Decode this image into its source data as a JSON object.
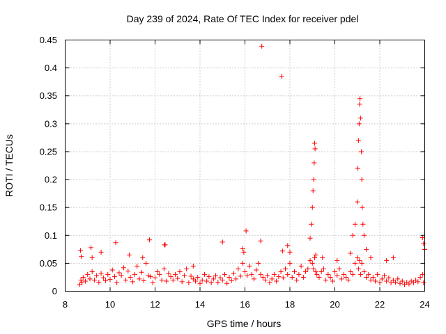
{
  "chart_data": {
    "type": "scatter",
    "title": "Day 239 of 2024, Rate Of TEC Index for receiver pdel",
    "xlabel": "GPS time / hours",
    "ylabel": "ROTI / TECUs",
    "xlim": [
      8,
      24
    ],
    "ylim": [
      0,
      0.45
    ],
    "xticks": [
      8,
      10,
      12,
      14,
      16,
      18,
      20,
      22,
      24
    ],
    "xtick_labels": [
      "8",
      "10",
      "12",
      "14",
      "16",
      "18",
      "20",
      "22",
      "24"
    ],
    "yticks": [
      0,
      0.05,
      0.1,
      0.15,
      0.2,
      0.25,
      0.3,
      0.35,
      0.4,
      0.45
    ],
    "ytick_labels": [
      "0",
      "0.05",
      "0.1",
      "0.15",
      "0.2",
      "0.25",
      "0.3",
      "0.35",
      "0.4",
      "0.45"
    ],
    "grid": true,
    "marker": "+",
    "series": [
      {
        "name": "ROTI",
        "color": "#ff0000",
        "x": [
          8.65,
          8.7,
          8.75,
          8.8,
          8.9,
          9.0,
          9.1,
          9.2,
          9.3,
          9.4,
          9.5,
          9.6,
          9.7,
          9.8,
          9.9,
          10.0,
          10.1,
          10.2,
          10.3,
          10.4,
          10.5,
          10.6,
          10.7,
          10.8,
          10.9,
          11.0,
          11.1,
          11.2,
          11.3,
          11.4,
          11.5,
          11.6,
          11.7,
          11.8,
          11.9,
          12.0,
          12.1,
          12.2,
          12.3,
          12.4,
          12.5,
          12.6,
          12.7,
          12.8,
          12.9,
          13.0,
          13.1,
          13.2,
          13.3,
          13.4,
          13.5,
          13.6,
          13.7,
          13.8,
          13.9,
          14.0,
          14.1,
          14.2,
          14.3,
          14.4,
          14.5,
          14.6,
          14.7,
          14.8,
          14.9,
          15.0,
          15.1,
          15.2,
          15.3,
          15.4,
          15.5,
          15.6,
          15.7,
          15.8,
          15.9,
          16.0,
          16.1,
          16.2,
          16.3,
          16.4,
          16.5,
          16.6,
          16.7,
          16.8,
          16.9,
          17.0,
          17.1,
          17.2,
          17.3,
          17.4,
          17.5,
          17.6,
          17.7,
          17.8,
          17.9,
          18.0,
          18.1,
          18.2,
          18.3,
          18.4,
          18.5,
          18.6,
          18.7,
          18.8,
          18.9,
          19.0,
          19.05,
          19.1,
          19.15,
          19.2,
          19.3,
          19.4,
          19.5,
          19.6,
          19.7,
          19.8,
          19.9,
          20.0,
          20.1,
          20.2,
          20.3,
          20.4,
          20.5,
          20.6,
          20.7,
          20.8,
          20.9,
          21.0,
          21.05,
          21.1,
          21.15,
          21.2,
          21.3,
          21.4,
          21.5,
          21.6,
          21.7,
          21.8,
          21.9,
          22.0,
          22.1,
          22.2,
          22.3,
          22.4,
          22.5,
          22.6,
          22.7,
          22.8,
          22.9,
          23.0,
          23.1,
          23.2,
          23.3,
          23.4,
          23.5,
          23.6,
          23.7,
          23.8,
          23.9,
          23.95,
          24.0,
          8.68,
          8.72,
          9.15,
          9.2,
          9.6,
          10.25,
          10.85,
          11.45,
          11.75,
          12.45,
          12.42,
          13.7,
          15.0,
          15.9,
          15.95,
          16.05,
          16.7,
          16.75,
          17.63,
          17.67,
          17.9,
          18.0,
          18.9,
          18.95,
          19.0,
          19.03,
          19.06,
          19.08,
          19.1,
          19.12,
          19.15,
          19.45,
          20.1,
          20.7,
          20.8,
          20.9,
          21.0,
          21.02,
          21.05,
          21.08,
          21.1,
          21.12,
          21.15,
          21.18,
          21.2,
          21.22,
          21.25,
          21.3,
          21.4,
          21.6,
          22.3,
          22.6,
          23.9,
          23.95,
          24.0
        ],
        "y": [
          0.012,
          0.02,
          0.015,
          0.025,
          0.018,
          0.03,
          0.022,
          0.035,
          0.02,
          0.028,
          0.016,
          0.032,
          0.024,
          0.019,
          0.03,
          0.021,
          0.038,
          0.026,
          0.015,
          0.033,
          0.028,
          0.042,
          0.02,
          0.036,
          0.025,
          0.017,
          0.03,
          0.045,
          0.022,
          0.034,
          0.019,
          0.05,
          0.028,
          0.026,
          0.015,
          0.024,
          0.035,
          0.03,
          0.02,
          0.04,
          0.018,
          0.032,
          0.026,
          0.02,
          0.03,
          0.023,
          0.035,
          0.017,
          0.028,
          0.04,
          0.015,
          0.027,
          0.022,
          0.018,
          0.025,
          0.014,
          0.02,
          0.03,
          0.018,
          0.026,
          0.015,
          0.022,
          0.028,
          0.016,
          0.024,
          0.02,
          0.03,
          0.014,
          0.025,
          0.019,
          0.032,
          0.022,
          0.04,
          0.027,
          0.05,
          0.035,
          0.028,
          0.045,
          0.03,
          0.022,
          0.038,
          0.05,
          0.03,
          0.025,
          0.02,
          0.028,
          0.015,
          0.022,
          0.03,
          0.018,
          0.026,
          0.035,
          0.024,
          0.04,
          0.03,
          0.05,
          0.025,
          0.035,
          0.02,
          0.03,
          0.045,
          0.025,
          0.035,
          0.04,
          0.055,
          0.05,
          0.04,
          0.06,
          0.035,
          0.03,
          0.025,
          0.035,
          0.04,
          0.02,
          0.03,
          0.025,
          0.018,
          0.035,
          0.028,
          0.04,
          0.022,
          0.03,
          0.025,
          0.02,
          0.035,
          0.03,
          0.05,
          0.06,
          0.04,
          0.055,
          0.03,
          0.05,
          0.035,
          0.025,
          0.03,
          0.02,
          0.025,
          0.018,
          0.03,
          0.015,
          0.022,
          0.028,
          0.018,
          0.024,
          0.015,
          0.02,
          0.016,
          0.022,
          0.014,
          0.018,
          0.012,
          0.016,
          0.013,
          0.018,
          0.015,
          0.02,
          0.017,
          0.025,
          0.03,
          0.015,
          0.075,
          0.073,
          0.062,
          0.078,
          0.06,
          0.07,
          0.087,
          0.065,
          0.06,
          0.092,
          0.083,
          0.083,
          0.045,
          0.088,
          0.076,
          0.07,
          0.108,
          0.09,
          0.439,
          0.385,
          0.072,
          0.082,
          0.07,
          0.095,
          0.12,
          0.15,
          0.18,
          0.2,
          0.23,
          0.265,
          0.255,
          0.065,
          0.06,
          0.055,
          0.068,
          0.1,
          0.12,
          0.16,
          0.22,
          0.27,
          0.3,
          0.335,
          0.345,
          0.31,
          0.25,
          0.2,
          0.15,
          0.12,
          0.1,
          0.075,
          0.06,
          0.055,
          0.06,
          0.096,
          0.085,
          0.075
        ]
      }
    ]
  }
}
